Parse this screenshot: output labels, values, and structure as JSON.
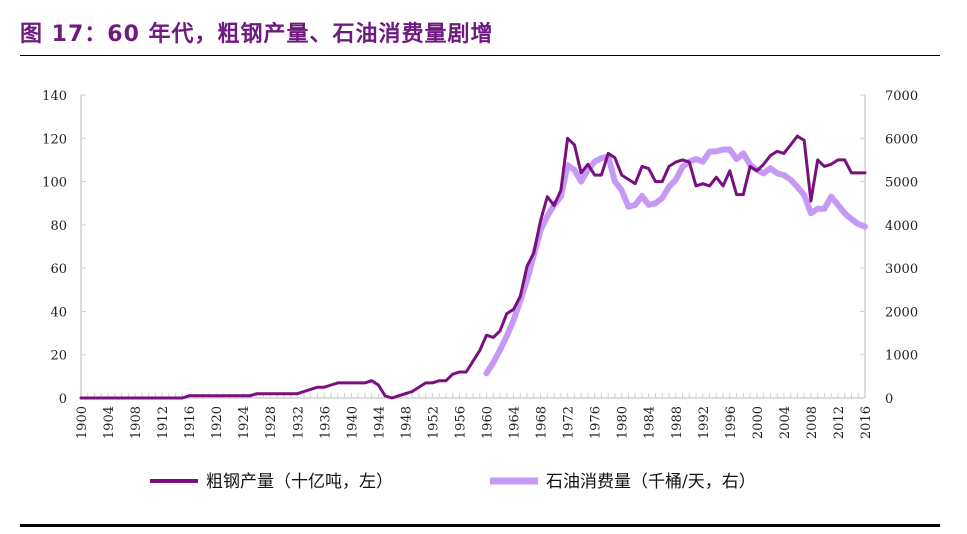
{
  "title": "图 17：60 年代，粗钢产量、石油消费量剧增",
  "chart_data": {
    "type": "line",
    "title": "图 17：60 年代，粗钢产量、石油消费量剧增",
    "xlim": [
      1900,
      2016
    ],
    "x_tick_labels": [
      "1900",
      "1904",
      "1908",
      "1912",
      "1916",
      "1920",
      "1924",
      "1928",
      "1932",
      "1936",
      "1940",
      "1944",
      "1948",
      "1952",
      "1956",
      "1960",
      "1964",
      "1968",
      "1972",
      "1976",
      "1980",
      "1984",
      "1988",
      "1992",
      "1996",
      "2000",
      "2004",
      "2008",
      "2012",
      "2016"
    ],
    "ylim_left": [
      0,
      140
    ],
    "y_left_ticks": [
      "0",
      "20",
      "40",
      "60",
      "80",
      "100",
      "120",
      "140"
    ],
    "ylim_right": [
      0,
      7000
    ],
    "y_right_ticks": [
      "0",
      "1000",
      "2000",
      "3000",
      "4000",
      "5000",
      "6000",
      "7000"
    ],
    "grid": false,
    "legend_position": "bottom",
    "series": [
      {
        "name": "粗钢产量（十亿吨，左）",
        "axis": "left",
        "color": "#7a0f7e",
        "x_start": 1900,
        "values": [
          0,
          0,
          0,
          0,
          0,
          0,
          0,
          0,
          0,
          0,
          0,
          0,
          0,
          0,
          0,
          0,
          1,
          1,
          1,
          1,
          1,
          1,
          1,
          1,
          1,
          1,
          2,
          2,
          2,
          2,
          2,
          2,
          2,
          3,
          4,
          5,
          5,
          6,
          7,
          7,
          7,
          7,
          7,
          8,
          6,
          1,
          0,
          1,
          2,
          3,
          5,
          7,
          7,
          8,
          8,
          11,
          12,
          12,
          17,
          22,
          29,
          28,
          31,
          39,
          41,
          47,
          61,
          67,
          82,
          93,
          89,
          96,
          120,
          117,
          104,
          108,
          103,
          103,
          113,
          111,
          103,
          101,
          99,
          107,
          106,
          100,
          100,
          107,
          109,
          110,
          109,
          98,
          99,
          98,
          102,
          98,
          105,
          94,
          94,
          107,
          105,
          108,
          112,
          114,
          113,
          117,
          121,
          119,
          91,
          110,
          107,
          108,
          110,
          110,
          104,
          104,
          104
        ]
      },
      {
        "name": "石油消费量（千桶/天，右）",
        "axis": "right",
        "color": "#c59af5",
        "x_start": 1960,
        "values": [
          570,
          820,
          1110,
          1430,
          1800,
          2250,
          2730,
          3300,
          3880,
          4200,
          4460,
          4650,
          5380,
          5270,
          5000,
          5270,
          5460,
          5540,
          5580,
          5000,
          4800,
          4420,
          4460,
          4670,
          4460,
          4500,
          4620,
          4880,
          5040,
          5340,
          5460,
          5520,
          5460,
          5690,
          5700,
          5740,
          5740,
          5520,
          5650,
          5390,
          5270,
          5190,
          5310,
          5190,
          5150,
          5040,
          4880,
          4690,
          4270,
          4370,
          4370,
          4650,
          4460,
          4270,
          4130,
          4020,
          3960
        ]
      }
    ]
  }
}
